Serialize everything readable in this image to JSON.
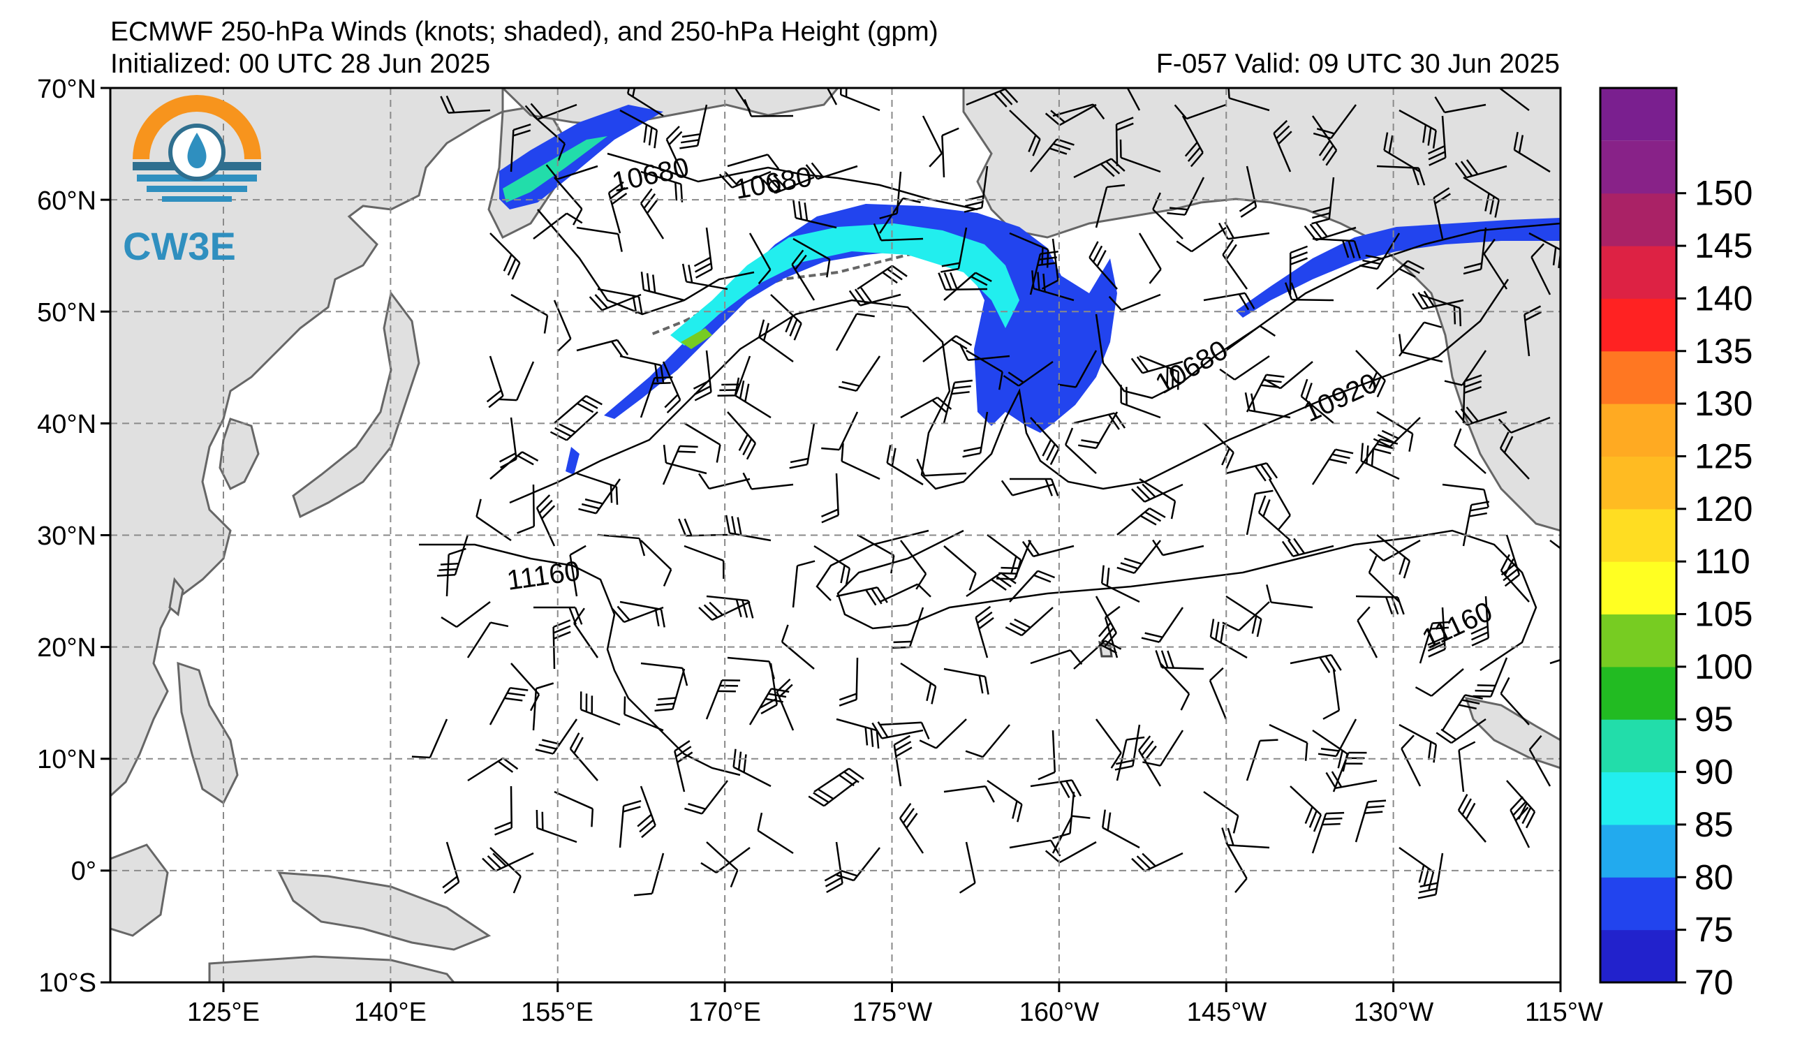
{
  "header": {
    "title": "ECMWF 250-hPa Winds (knots; shaded), and 250-hPa Height (gpm)",
    "initialized": "Initialized: 00 UTC 28 Jun 2025",
    "valid": "F-057  Valid: 09 UTC 30 Jun 2025"
  },
  "logo": {
    "text": "CW3E",
    "icon": "water-drop-sun-icon"
  },
  "map": {
    "lat_labels": [
      "70°N",
      "60°N",
      "50°N",
      "40°N",
      "30°N",
      "20°N",
      "10°N",
      "0°",
      "10°S"
    ],
    "lon_labels": [
      "125°E",
      "140°E",
      "155°E",
      "170°E",
      "175°W",
      "160°W",
      "145°W",
      "130°W",
      "115°W"
    ],
    "contour_labels": [
      "10680",
      "10680",
      "10680",
      "10920",
      "11160",
      "11160"
    ],
    "colors": {
      "land": "#e0e0e0",
      "ocean": "#ffffff",
      "coast": "#666666",
      "grid": "#8a8a8a"
    }
  },
  "colorbar": {
    "labels": [
      "70",
      "75",
      "80",
      "85",
      "90",
      "95",
      "100",
      "105",
      "110",
      "120",
      "125",
      "130",
      "135",
      "140",
      "145",
      "150"
    ],
    "colors": [
      "#2222cc",
      "#2244ee",
      "#22aaee",
      "#22eeee",
      "#22ddaa",
      "#22bb22",
      "#77cc22",
      "#ffff22",
      "#ffdd22",
      "#ffbb22",
      "#ffaa22",
      "#ff7722",
      "#ff2222",
      "#dd2244",
      "#aa2266",
      "#882288"
    ]
  }
}
